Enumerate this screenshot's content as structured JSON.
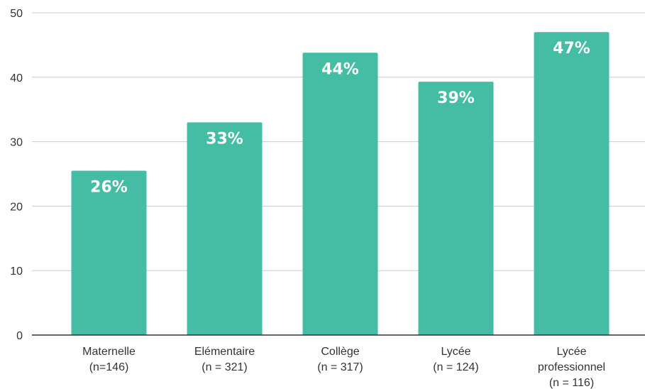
{
  "chart_data": {
    "type": "bar",
    "title": "",
    "xlabel": "",
    "ylabel": "",
    "ylim": [
      0,
      50
    ],
    "yticks": [
      0,
      10,
      20,
      30,
      40,
      50
    ],
    "grid": true,
    "bar_color": "#45bda5",
    "categories": [
      {
        "lines": [
          "Maternelle",
          "(n=146)"
        ]
      },
      {
        "lines": [
          "Elémentaire",
          "(n = 321)"
        ]
      },
      {
        "lines": [
          "Collège",
          "(n = 317)"
        ]
      },
      {
        "lines": [
          "Lycée",
          "(n = 124)"
        ]
      },
      {
        "lines": [
          "Lycée",
          "professionnel",
          "(n = 116)"
        ]
      }
    ],
    "values": [
      25.5,
      33,
      43.8,
      39.3,
      47
    ],
    "data_labels": [
      "26%",
      "33%",
      "44%",
      "39%",
      "47%"
    ]
  }
}
